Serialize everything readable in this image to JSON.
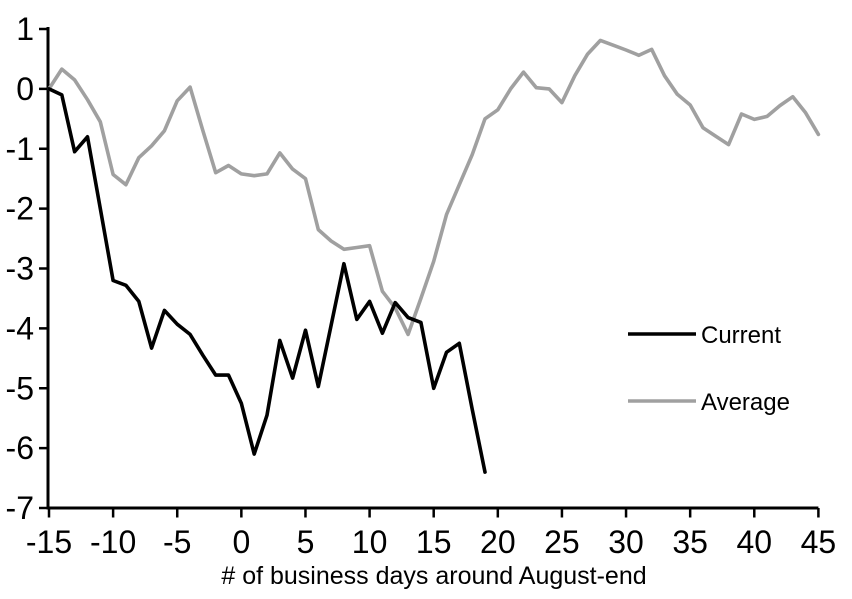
{
  "figure": {
    "background": "#ffffff",
    "axis_color": "#000000",
    "text_color": "#000000"
  },
  "chart_data": {
    "type": "line",
    "title": "",
    "xlabel": "# of business days around August-end",
    "ylabel": "",
    "xlim": [
      -15,
      45
    ],
    "ylim": [
      -7,
      1
    ],
    "grid": false,
    "legend_position": "middle-right",
    "x_ticks": [
      -15,
      -10,
      -5,
      0,
      5,
      10,
      15,
      20,
      25,
      30,
      35,
      40,
      45
    ],
    "x_tick_labels": [
      "-15",
      "-10",
      "-5",
      "0",
      "5",
      "10",
      "15",
      "20",
      "25",
      "30",
      "35",
      "40",
      "45"
    ],
    "y_ticks": [
      1,
      0,
      -1,
      -2,
      -3,
      -4,
      -5,
      -6,
      -7
    ],
    "y_tick_labels": [
      "1",
      "0",
      "-1",
      "-2",
      "-3",
      "-4",
      "-5",
      "-6",
      "-7"
    ],
    "series": [
      {
        "name": "Current",
        "color": "#000000",
        "x": [
          -15,
          -14,
          -13,
          -12,
          -11,
          -10,
          -9,
          -8,
          -7,
          -6,
          -5,
          -4,
          -3,
          -2,
          -1,
          0,
          1,
          2,
          3,
          4,
          5,
          6,
          7,
          8,
          9,
          10,
          11,
          12,
          13,
          14,
          15,
          16,
          17,
          18,
          19
        ],
        "values": [
          0,
          -0.1,
          -1.05,
          -0.8,
          -2,
          -3.2,
          -3.28,
          -3.55,
          -4.33,
          -3.7,
          -3.93,
          -4.1,
          -4.45,
          -4.78,
          -4.78,
          -5.25,
          -6.1,
          -5.45,
          -4.2,
          -4.83,
          -4.03,
          -4.97,
          -3.95,
          -2.92,
          -3.85,
          -3.55,
          -4.08,
          -3.57,
          -3.82,
          -3.9,
          -5,
          -4.4,
          -4.25,
          -5.35,
          -6.4
        ]
      },
      {
        "name": "Average",
        "color": "#a0a0a0",
        "x": [
          -15,
          -14,
          -13,
          -12,
          -11,
          -10,
          -9,
          -8,
          -7,
          -6,
          -5,
          -4,
          -3,
          -2,
          -1,
          0,
          1,
          2,
          3,
          4,
          5,
          6,
          7,
          8,
          9,
          10,
          11,
          12,
          13,
          14,
          15,
          16,
          17,
          18,
          19,
          20,
          21,
          22,
          23,
          24,
          25,
          26,
          27,
          28,
          29,
          30,
          31,
          32,
          33,
          34,
          35,
          36,
          37,
          38,
          39,
          40,
          41,
          42,
          43,
          44,
          45
        ],
        "values": [
          0,
          0.33,
          0.15,
          -0.18,
          -0.55,
          -1.43,
          -1.6,
          -1.15,
          -0.95,
          -0.7,
          -0.2,
          0.03,
          -0.7,
          -1.4,
          -1.28,
          -1.42,
          -1.45,
          -1.42,
          -1.07,
          -1.34,
          -1.5,
          -2.35,
          -2.54,
          -2.68,
          -2.65,
          -2.62,
          -3.38,
          -3.66,
          -4.1,
          -3.5,
          -2.88,
          -2.1,
          -1.6,
          -1.1,
          -0.5,
          -0.35,
          0,
          0.28,
          0.02,
          0,
          -0.23,
          0.22,
          0.58,
          0.81,
          0.73,
          0.65,
          0.56,
          0.66,
          0.22,
          -0.09,
          -0.27,
          -0.65,
          -0.79,
          -0.93,
          -0.42,
          -0.51,
          -0.46,
          -0.28,
          -0.13,
          -0.4,
          -0.76
        ]
      }
    ]
  },
  "legend": {
    "items": [
      {
        "label": "Current",
        "color": "#000000"
      },
      {
        "label": "Average",
        "color": "#a0a0a0"
      }
    ]
  }
}
